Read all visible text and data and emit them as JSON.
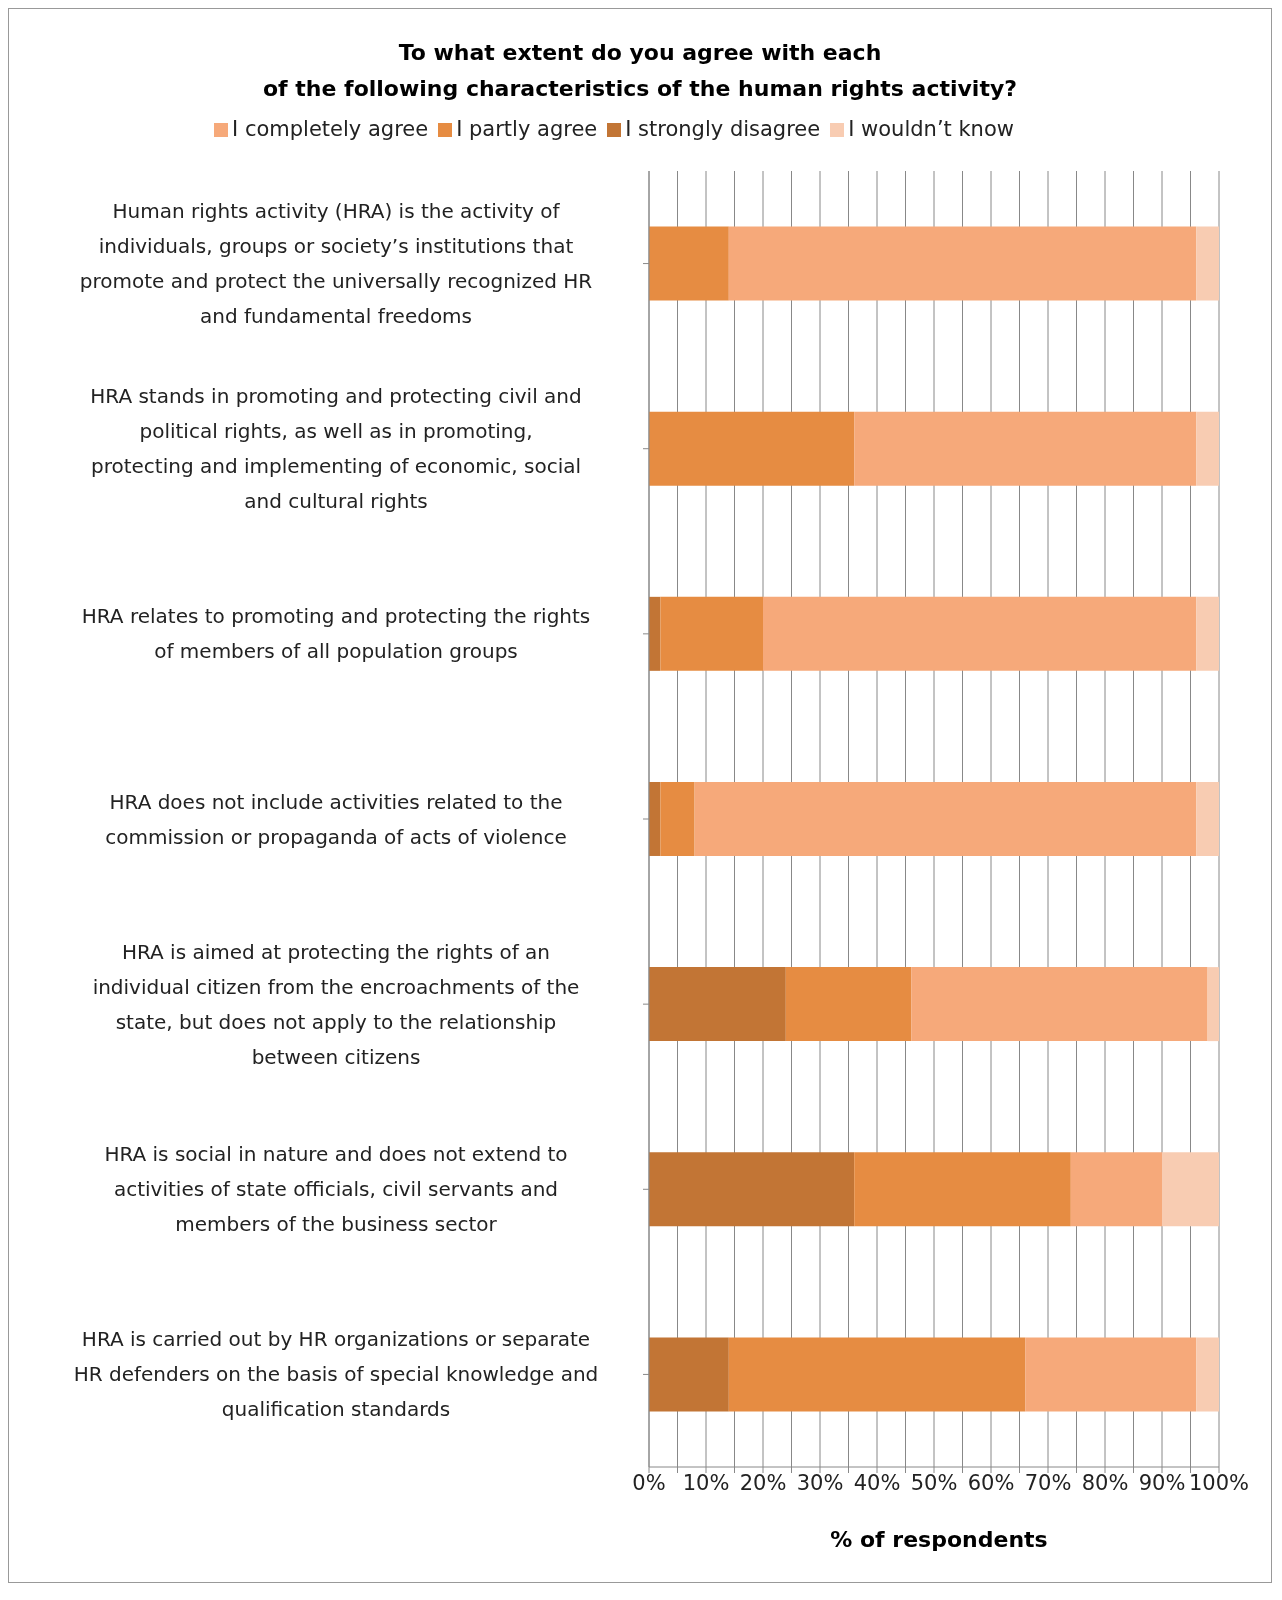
{
  "chart_data": {
    "type": "bar",
    "orientation": "horizontal",
    "stacked": true,
    "title": "To what extent do you agree with each\nof the following characteristics of the human rights activity?",
    "xlabel": "% of respondents",
    "categories": [
      "Human rights activity (HRA) is the activity of individuals, groups or society’s institutions that promote and protect the universally recognized HR and fundamental freedoms",
      "HRA stands in promoting and protecting civil and political rights, as well as in promoting, protecting and implementing of economic, social and cultural rights",
      "HRA relates to promoting and protecting the rights of members of all population groups",
      "HRA does not include activities related to the commission or propaganda of acts of violence",
      "HRA is aimed at protecting the rights of an individual citizen from the encroachments of the state, but does not apply to the relationship between citizens",
      "HRA is social in nature and does not extend to activities of state officials, civil servants and members of the business sector",
      "HRA is carried out by HR organizations or separate HR defenders on the basis of special knowledge and qualification standards"
    ],
    "series": [
      {
        "name": "I strongly disagree",
        "color": "#c27535",
        "values": [
          0,
          0,
          2,
          2,
          24,
          36,
          14
        ]
      },
      {
        "name": "I partly agree",
        "color": "#e68c42",
        "values": [
          14,
          36,
          18,
          6,
          22,
          38,
          52
        ]
      },
      {
        "name": "I completely agree",
        "color": "#f6a97a",
        "values": [
          82,
          60,
          76,
          88,
          52,
          16,
          30
        ]
      },
      {
        "name": "I wouldn’t know",
        "color": "#f8ccb2",
        "values": [
          4,
          4,
          4,
          4,
          2,
          10,
          4
        ]
      }
    ],
    "xlim": [
      0,
      100
    ],
    "xticks": [
      {
        "value": 0,
        "label": "0%"
      },
      {
        "value": 5,
        "label": null
      },
      {
        "value": 10,
        "label": "10%"
      },
      {
        "value": 15,
        "label": null
      },
      {
        "value": 20,
        "label": "20%"
      },
      {
        "value": 25,
        "label": null
      },
      {
        "value": 30,
        "label": "30%"
      },
      {
        "value": 35,
        "label": null
      },
      {
        "value": 40,
        "label": "40%"
      },
      {
        "value": 45,
        "label": null
      },
      {
        "value": 50,
        "label": "50%"
      },
      {
        "value": 55,
        "label": null
      },
      {
        "value": 60,
        "label": "60%"
      },
      {
        "value": 65,
        "label": null
      },
      {
        "value": 70,
        "label": "70%"
      },
      {
        "value": 75,
        "label": null
      },
      {
        "value": 80,
        "label": "80%"
      },
      {
        "value": 85,
        "label": null
      },
      {
        "value": 90,
        "label": "90%"
      },
      {
        "value": 95,
        "label": null
      },
      {
        "value": 100,
        "label": "100%"
      }
    ],
    "grid": "x",
    "legend": "top"
  }
}
